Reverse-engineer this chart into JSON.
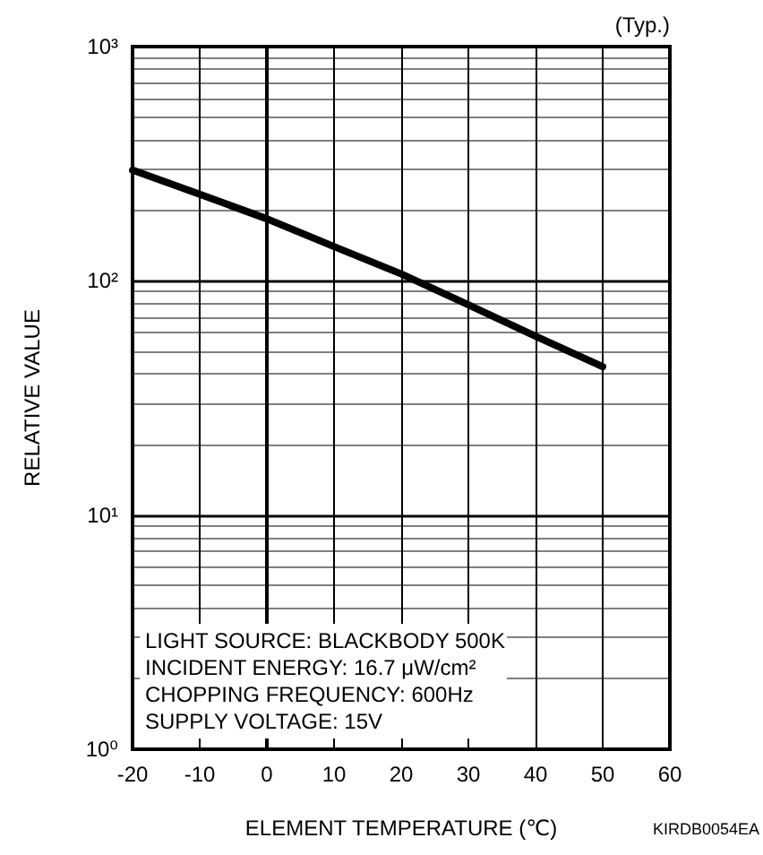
{
  "chart_data": {
    "type": "line",
    "xlabel": "ELEMENT TEMPERATURE (℃)",
    "ylabel": "RELATIVE VALUE",
    "x": [
      -20,
      -10,
      0,
      10,
      20,
      30,
      40,
      50
    ],
    "series": [
      {
        "color": "#000000",
        "values": [
          297,
          234,
          184,
          140,
          107,
          79,
          58,
          43
        ]
      }
    ],
    "xlim": [
      -20,
      60
    ],
    "xticks": [
      -20,
      -10,
      0,
      10,
      20,
      30,
      40,
      50,
      60
    ],
    "ylim": [
      1,
      1000
    ],
    "yticks": [
      {
        "value": 1,
        "label": "10⁰"
      },
      {
        "value": 10,
        "label": "10¹"
      },
      {
        "value": 100,
        "label": "10²"
      },
      {
        "value": 1000,
        "label": "10³"
      }
    ],
    "log": "y",
    "grid": true,
    "marker": "none",
    "line_style": "solid",
    "annotations": [
      "(Typ.)",
      "LIGHT SOURCE: BLACKBODY 500K",
      "INCIDENT ENERGY: 16.7 μW/cm²",
      "CHOPPING FREQUENCY: 600Hz",
      "SUPPLY VOLTAGE: 15V",
      "KIRDB0054EA"
    ]
  }
}
